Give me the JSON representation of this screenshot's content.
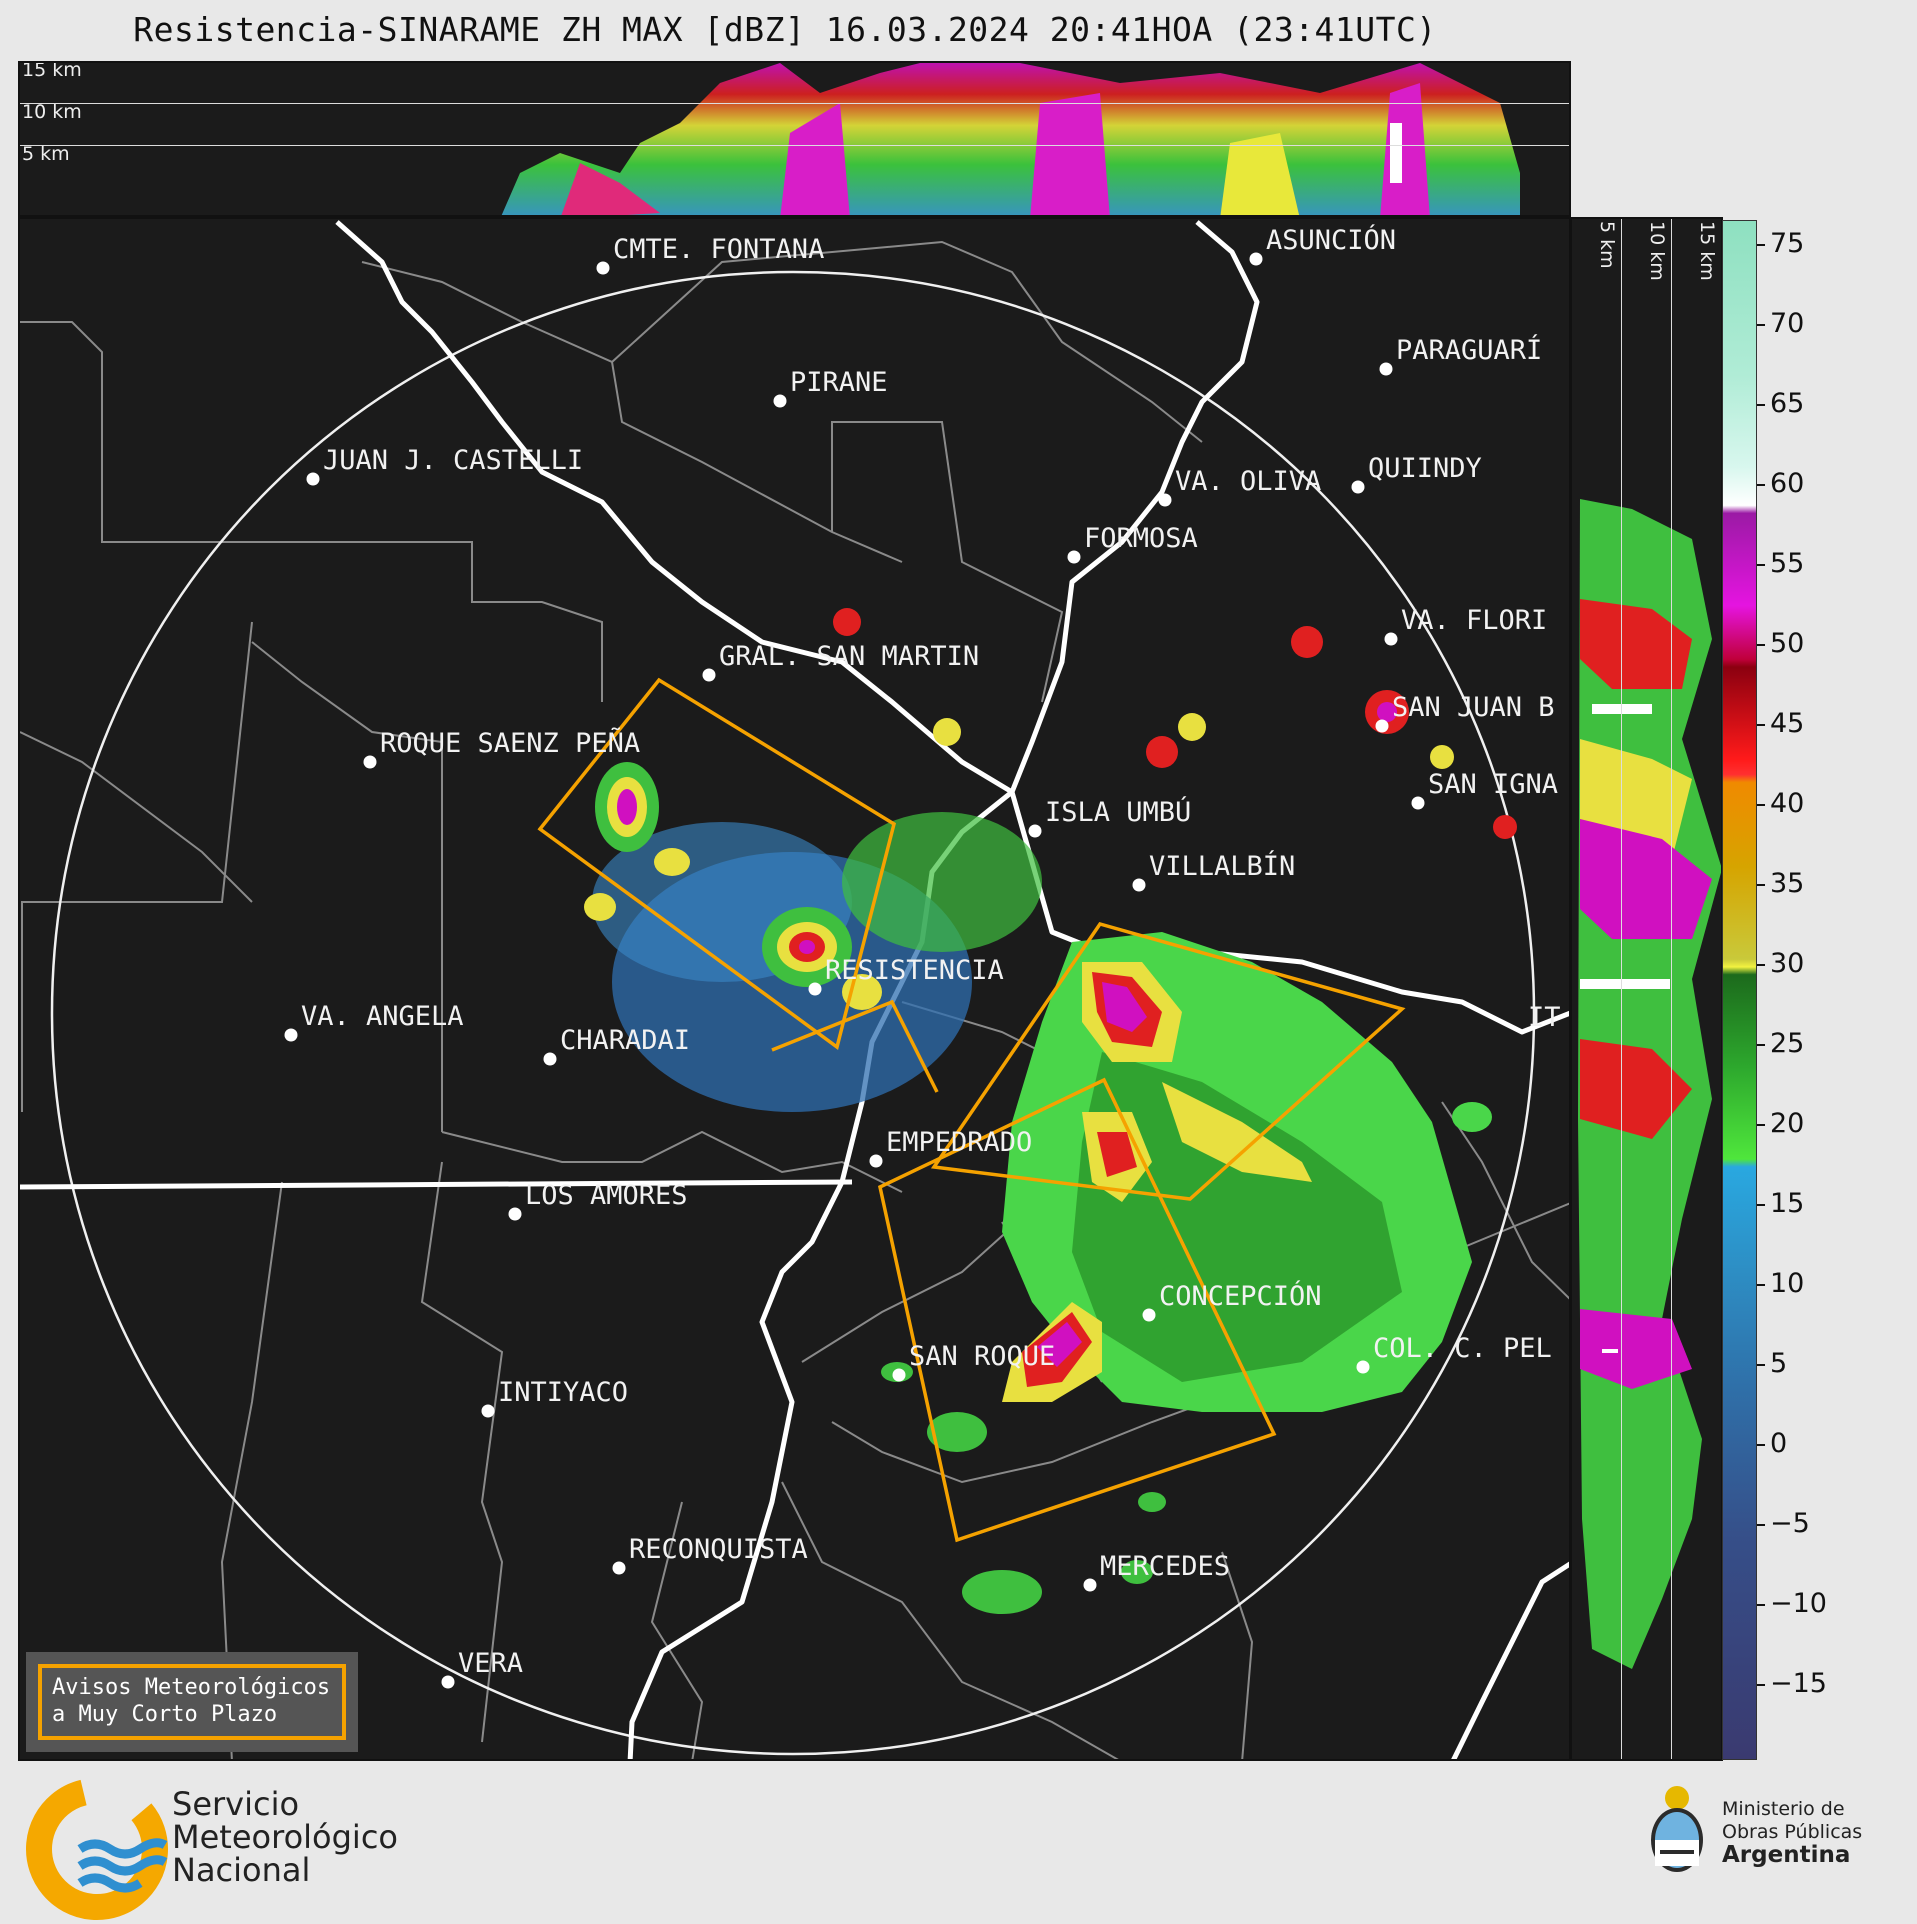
{
  "title": "Resistencia-SINARAME ZH MAX [dBZ] 16.03.2024 20:41HOA (23:41UTC)",
  "height_labels": [
    "15 km",
    "10 km",
    "5 km"
  ],
  "side_labels": [
    "5 km",
    "10 km",
    "15 km"
  ],
  "colorbar": {
    "ticks": [
      "75",
      "70",
      "65",
      "60",
      "55",
      "50",
      "45",
      "40",
      "35",
      "30",
      "25",
      "20",
      "15",
      "10",
      "5",
      "0",
      "−5",
      "−10",
      "−15"
    ]
  },
  "cities": [
    {
      "name": "CMTE. FONTANA"
    },
    {
      "name": "PIRANE"
    },
    {
      "name": "JUAN J. CASTELLI"
    },
    {
      "name": "ASUNCIÓN"
    },
    {
      "name": "PARAGUARÍ"
    },
    {
      "name": "VA. OLIVA"
    },
    {
      "name": "QUIINDY"
    },
    {
      "name": "FORMOSA"
    },
    {
      "name": "VA. FLORI"
    },
    {
      "name": "GRAL. SAN MARTIN"
    },
    {
      "name": "SAN JUAN B"
    },
    {
      "name": "ROQUE SAENZ PEÑA"
    },
    {
      "name": "SAN IGNA"
    },
    {
      "name": "ISLA UMBÚ"
    },
    {
      "name": "VILLALBÍN"
    },
    {
      "name": "RESISTENCIA"
    },
    {
      "name": "IT"
    },
    {
      "name": "VA. ANGELA"
    },
    {
      "name": "CHARADAI"
    },
    {
      "name": "EMPEDRADO"
    },
    {
      "name": "LOS AMORES"
    },
    {
      "name": "CONCEPCIÓN"
    },
    {
      "name": "SAN ROQUE"
    },
    {
      "name": "COL. C. PEL"
    },
    {
      "name": "INTIYACO"
    },
    {
      "name": "RECONQUISTA"
    },
    {
      "name": "MERCEDES"
    },
    {
      "name": "VERA"
    }
  ],
  "warning_box": {
    "line1": "Avisos Meteorológicos",
    "line2": "a Muy Corto Plazo"
  },
  "smn": {
    "line1": "Servicio",
    "line2": "Meteorológico",
    "line3": "Nacional"
  },
  "ministry": {
    "line1": "Ministerio de",
    "line2": "Obras Públicas",
    "line3": "Argentina"
  }
}
